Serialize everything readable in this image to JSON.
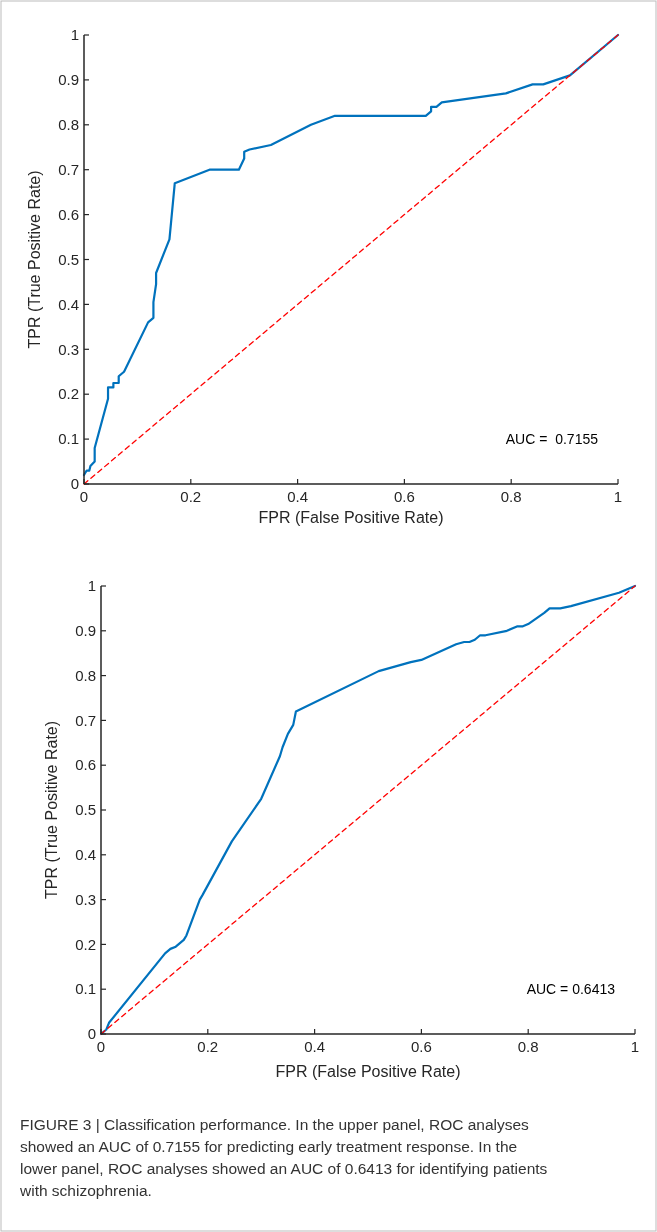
{
  "chart_data": [
    {
      "type": "line",
      "xlabel": "FPR (False Positive Rate)",
      "ylabel": "TPR (True Positive Rate)",
      "xlim": [
        0,
        1
      ],
      "ylim": [
        0,
        1
      ],
      "xticks": [
        0,
        0.2,
        0.4,
        0.6,
        0.8,
        1
      ],
      "yticks": [
        0,
        0.1,
        0.2,
        0.3,
        0.4,
        0.5,
        0.6,
        0.7,
        0.8,
        0.9,
        1
      ],
      "series": [
        {
          "color": "#0072bd",
          "line_style": "solid",
          "x": [
            0,
            0.005,
            0.01,
            0.012,
            0.02,
            0.02,
            0.045,
            0.045,
            0.055,
            0.055,
            0.065,
            0.065,
            0.075,
            0.12,
            0.13,
            0.13,
            0.135,
            0.135,
            0.16,
            0.17,
            0.235,
            0.29,
            0.3,
            0.3,
            0.31,
            0.35,
            0.425,
            0.47,
            0.64,
            0.65,
            0.65,
            0.66,
            0.67,
            0.79,
            0.84,
            0.86,
            0.91,
            1
          ],
          "values": [
            0.02,
            0.03,
            0.03,
            0.04,
            0.05,
            0.08,
            0.19,
            0.215,
            0.215,
            0.225,
            0.225,
            0.24,
            0.25,
            0.36,
            0.37,
            0.405,
            0.445,
            0.47,
            0.545,
            0.67,
            0.7,
            0.7,
            0.725,
            0.74,
            0.745,
            0.755,
            0.8,
            0.82,
            0.82,
            0.83,
            0.84,
            0.84,
            0.85,
            0.87,
            0.89,
            0.89,
            0.91,
            1
          ]
        },
        {
          "color": "#ff0000",
          "line_style": "dashed",
          "x": [
            0,
            1
          ],
          "values": [
            0,
            1
          ]
        }
      ],
      "annotations": [
        "AUC =  0.7155"
      ]
    },
    {
      "type": "line",
      "xlabel": "FPR (False Positive Rate)",
      "ylabel": "TPR (True Positive Rate)",
      "xlim": [
        0,
        1
      ],
      "ylim": [
        0,
        1
      ],
      "xticks": [
        0,
        0.2,
        0.4,
        0.6,
        0.8,
        1
      ],
      "yticks": [
        0,
        0.1,
        0.2,
        0.3,
        0.4,
        0.5,
        0.6,
        0.7,
        0.8,
        0.9,
        1
      ],
      "series": [
        {
          "color": "#0072bd",
          "line_style": "solid",
          "x": [
            0,
            0.01,
            0.015,
            0.12,
            0.13,
            0.14,
            0.155,
            0.16,
            0.185,
            0.19,
            0.245,
            0.3,
            0.335,
            0.34,
            0.35,
            0.36,
            0.365,
            0.52,
            0.55,
            0.58,
            0.6,
            0.665,
            0.68,
            0.69,
            0.7,
            0.71,
            0.72,
            0.76,
            0.78,
            0.79,
            0.8,
            0.83,
            0.84,
            0.86,
            0.88,
            0.97,
            1
          ],
          "values": [
            0,
            0.01,
            0.025,
            0.18,
            0.19,
            0.195,
            0.21,
            0.22,
            0.3,
            0.31,
            0.43,
            0.525,
            0.62,
            0.64,
            0.67,
            0.69,
            0.72,
            0.81,
            0.82,
            0.83,
            0.835,
            0.87,
            0.875,
            0.875,
            0.88,
            0.89,
            0.89,
            0.9,
            0.91,
            0.91,
            0.915,
            0.94,
            0.95,
            0.95,
            0.955,
            0.985,
            1
          ]
        },
        {
          "color": "#ff0000",
          "line_style": "dashed",
          "x": [
            0,
            1
          ],
          "values": [
            0,
            1
          ]
        }
      ],
      "annotations": [
        "AUC = 0.6413",
        "FIGURE 3 | Classification performance. In the upper panel, ROC analyses showed an AUC of 0.7155 for predicting early treatment response. In the lower panel, ROC analyses showed an AUC of 0.6413 for identifying patients with schizophrenia."
      ]
    }
  ]
}
